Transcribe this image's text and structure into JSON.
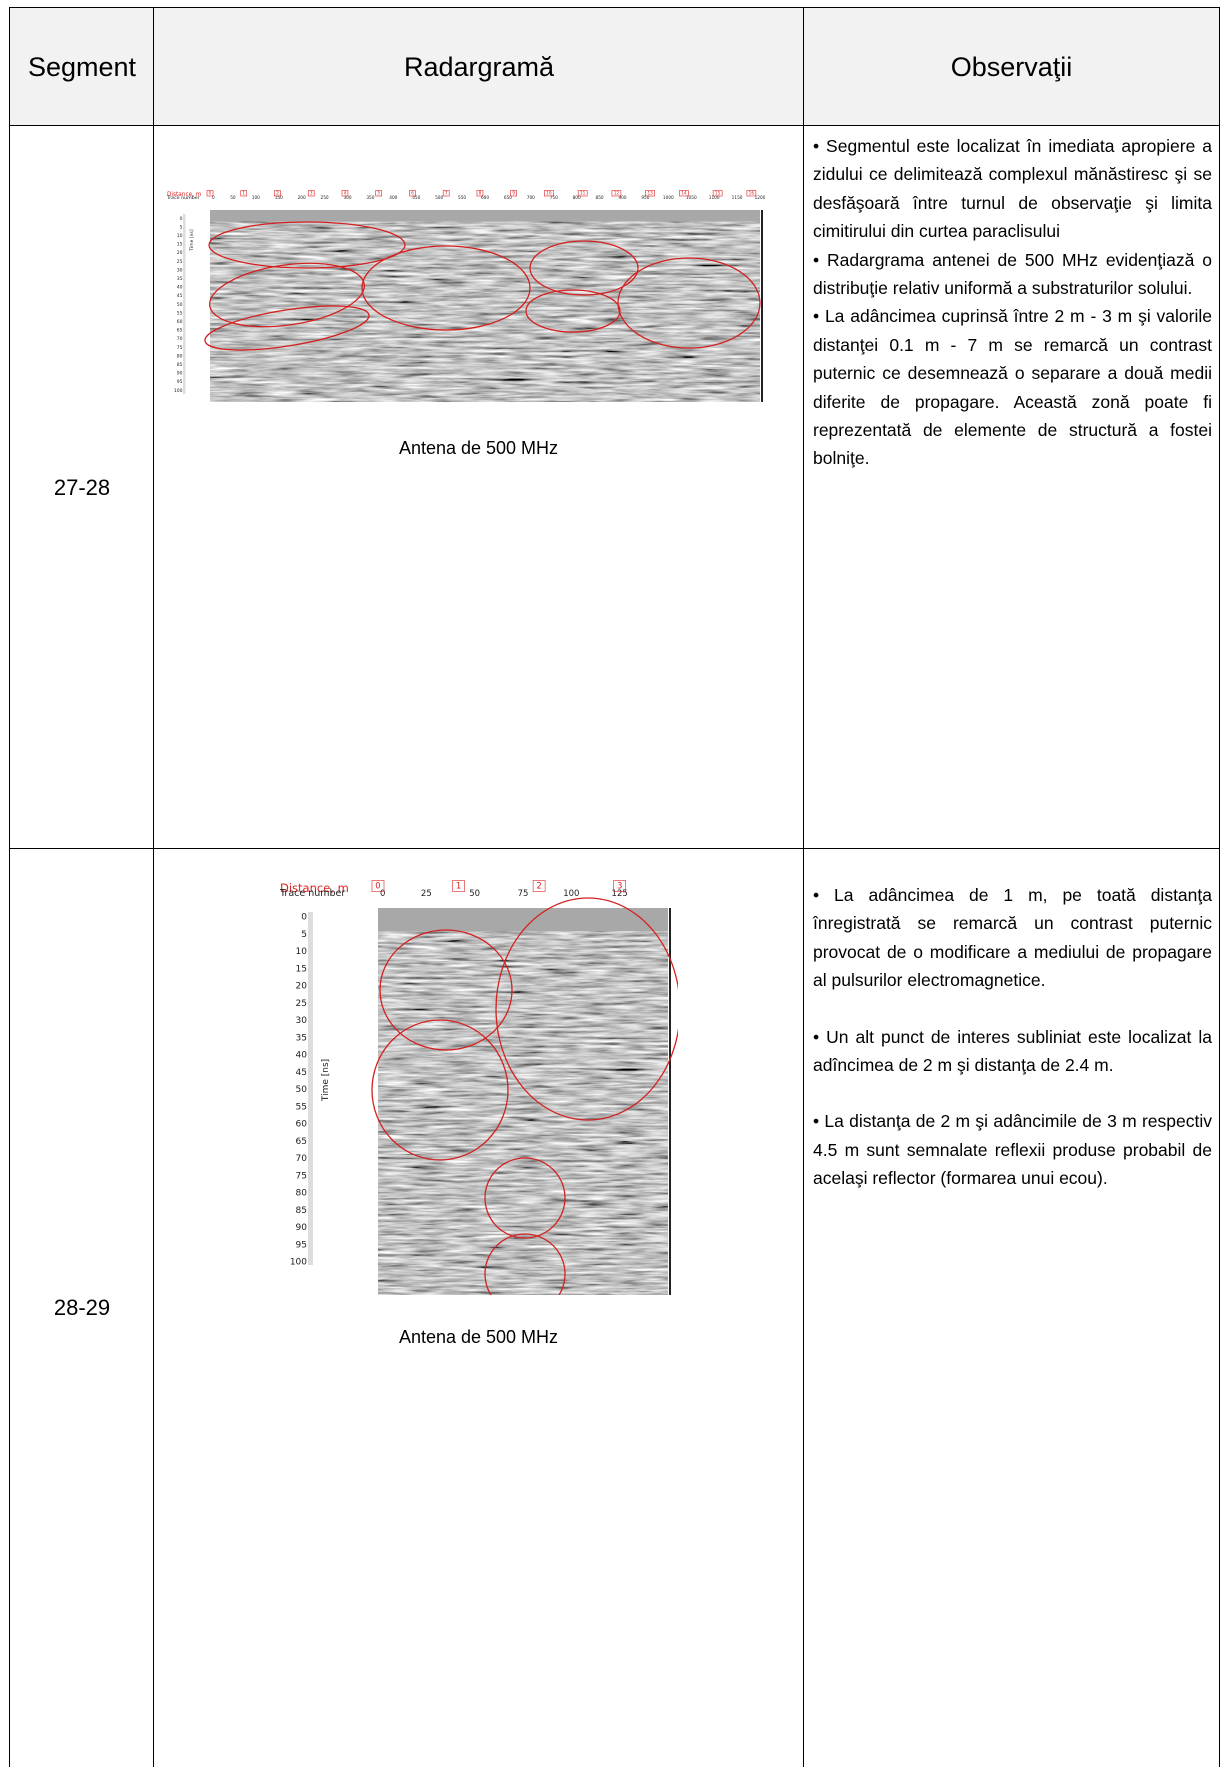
{
  "table": {
    "headers": [
      "Segment",
      "Radargramă",
      "Observaţii"
    ],
    "rows": [
      {
        "segment": "27-28",
        "caption": "Antena de 500 MHz",
        "radargram": {
          "distance_label": "Distance, m",
          "trace_label": "Trace number",
          "time_label": "Time [ns]",
          "distance_marks": [
            "0",
            "1",
            "2",
            "3",
            "4",
            "5",
            "6",
            "7",
            "8",
            "9",
            "10",
            "11",
            "12",
            "13",
            "14",
            "15",
            "16"
          ],
          "trace_ticks": [
            "0",
            "50",
            "100",
            "150",
            "200",
            "250",
            "300",
            "350",
            "400",
            "450",
            "500",
            "550",
            "600",
            "650",
            "700",
            "750",
            "800",
            "850",
            "900",
            "950",
            "1000",
            "1050",
            "1100",
            "1150",
            "1200"
          ],
          "time_ticks": [
            "0",
            "5",
            "10",
            "15",
            "20",
            "25",
            "30",
            "35",
            "40",
            "45",
            "50",
            "55",
            "60",
            "65",
            "70",
            "75",
            "80",
            "85",
            "90",
            "95",
            "100"
          ]
        },
        "observations": [
          "• Segmentul este localizat în imediata apropiere a zidului ce delimitează complexul mănăstiresc şi se desfăşoară între turnul de observaţie şi limita cimitirului din curtea paraclisului",
          "• Radargrama antenei de 500 MHz evidenţiază o distribuţie relativ uniformă a substraturilor solului.",
          "• La adâncimea cuprinsă între 2 m - 3 m şi valorile distanţei 0.1 m - 7 m se remarcă un contrast puternic ce desemnează o separare a două medii diferite de propagare. Această zonă poate fi reprezentată de elemente de structură a fostei bolniţe."
        ]
      },
      {
        "segment": "28-29",
        "caption": "Antena de 500 MHz",
        "radargram": {
          "distance_label": "Distance, m",
          "trace_label": "Trace number",
          "time_label": "Time [ns]",
          "distance_marks": [
            "0",
            "1",
            "2",
            "3"
          ],
          "trace_ticks": [
            "0",
            "25",
            "50",
            "75",
            "100",
            "125"
          ],
          "time_ticks": [
            "0",
            "5",
            "10",
            "15",
            "20",
            "25",
            "30",
            "35",
            "40",
            "45",
            "50",
            "55",
            "60",
            "65",
            "70",
            "75",
            "80",
            "85",
            "90",
            "95",
            "100"
          ]
        },
        "observations": [
          "• La adâncimea de 1 m, pe toată distanţa înregistrată se remarcă un contrast puternic provocat de o modificare a mediului de propagare al pulsurilor electromagnetice.",
          "• Un alt punct de interes subliniat este localizat la adîncimea de 2 m şi distanţa de 2.4 m.",
          "• La distanţa de 2 m şi adâncimile de 3 m respectiv 4.5 m sunt semnalate reflexii produse probabil de acelaşi reflector (formarea unui ecou)."
        ]
      }
    ]
  }
}
